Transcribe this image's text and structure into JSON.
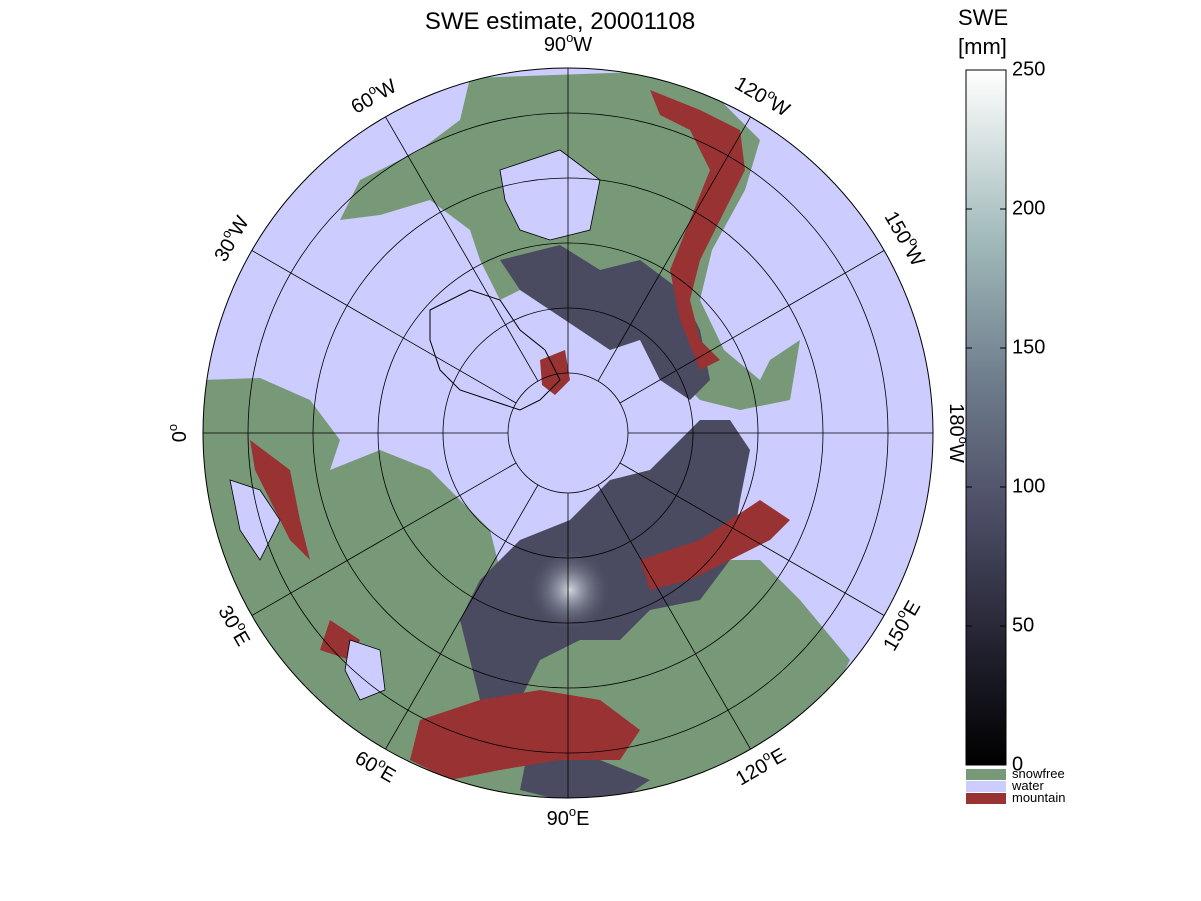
{
  "title": "SWE estimate, 20001108",
  "map": {
    "projection": "north polar stereographic",
    "meridian_labels": [
      {
        "deg": "90",
        "hemi": "W",
        "bearing": 0
      },
      {
        "deg": "120",
        "hemi": "W",
        "bearing": 30
      },
      {
        "deg": "150",
        "hemi": "W",
        "bearing": 60
      },
      {
        "deg": "180",
        "hemi": "W",
        "bearing": 90
      },
      {
        "deg": "150",
        "hemi": "E",
        "bearing": 120
      },
      {
        "deg": "120",
        "hemi": "E",
        "bearing": 150
      },
      {
        "deg": "90",
        "hemi": "E",
        "bearing": 180
      },
      {
        "deg": "60",
        "hemi": "E",
        "bearing": 210
      },
      {
        "deg": "30",
        "hemi": "E",
        "bearing": 240
      },
      {
        "deg": "0",
        "hemi": "",
        "bearing": 270
      },
      {
        "deg": "30",
        "hemi": "W",
        "bearing": 300
      },
      {
        "deg": "60",
        "hemi": "W",
        "bearing": 330
      }
    ],
    "colors": {
      "water": "#ccccff",
      "snowfree": "#779977",
      "mountain": "#993333",
      "coast": "#000000"
    }
  },
  "colorbar": {
    "title_line1": "SWE",
    "title_line2": "[mm]",
    "ticks": [
      "0",
      "50",
      "100",
      "150",
      "200",
      "250"
    ],
    "min": 0,
    "max": 250,
    "categories": [
      {
        "label": "snowfree",
        "color": "#779977"
      },
      {
        "label": "water",
        "color": "#ccccff"
      },
      {
        "label": "mountain",
        "color": "#993333"
      }
    ]
  }
}
